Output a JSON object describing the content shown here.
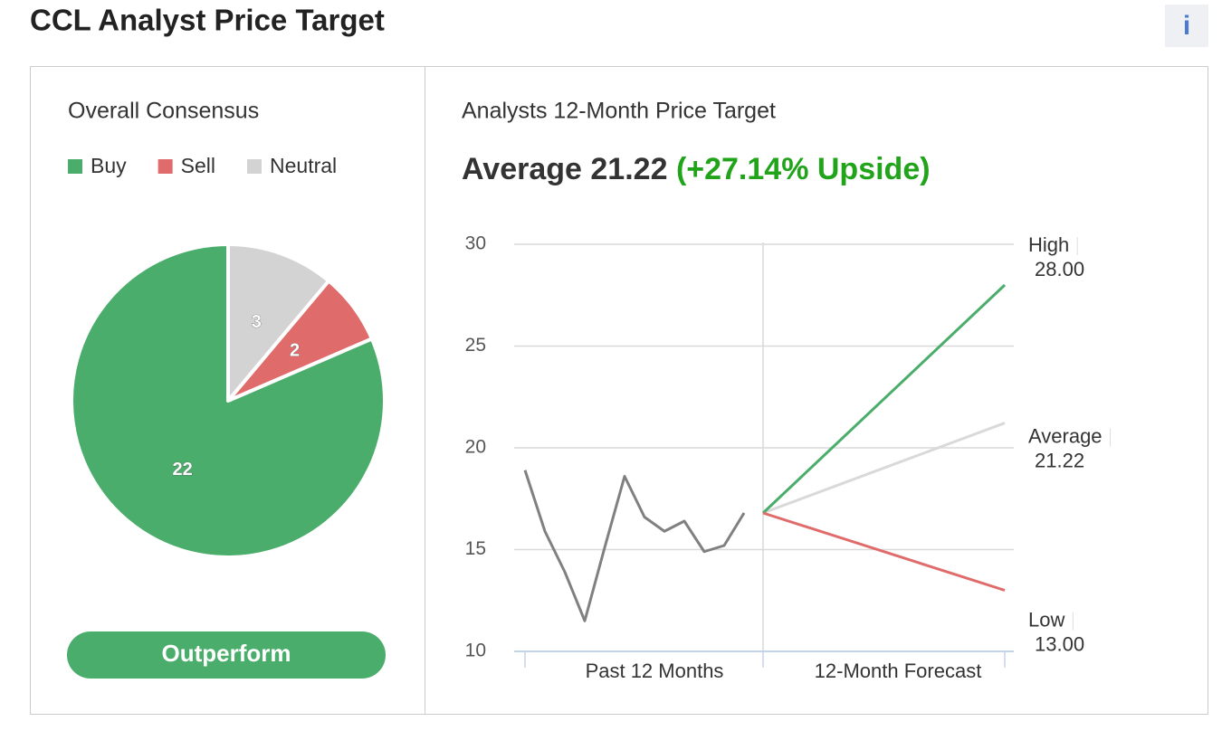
{
  "header": {
    "title": "CCL Analyst Price Target",
    "info": "i"
  },
  "chart_data": [
    {
      "type": "pie",
      "title": "Overall Consensus",
      "categories": [
        "Buy",
        "Sell",
        "Neutral"
      ],
      "values": [
        22,
        2,
        3
      ],
      "colors": [
        "#4aad6b",
        "#e06b6b",
        "#d3d3d3"
      ],
      "rating": "Outperform"
    },
    {
      "type": "line",
      "title": "Analysts 12-Month Price Target",
      "upside": "(+27.14% Upside)",
      "x_labels": [
        "Past 12 Months",
        "12-Month Forecast"
      ],
      "past": {
        "color": "#808080",
        "values": [
          18.9,
          15.9,
          13.9,
          11.5,
          15.1,
          18.6,
          16.6,
          15.9,
          16.4,
          14.9,
          15.2,
          16.8
        ]
      },
      "forecast": {
        "names": [
          "High",
          "Average",
          "Low"
        ],
        "values": [
          28,
          21.22,
          13
        ],
        "value_labels": [
          "28.00",
          "21.22",
          "13.00"
        ],
        "colors": [
          "#4aad6b",
          "#d9d9d9",
          "#e06b6b"
        ]
      },
      "ylim": [
        10,
        30
      ],
      "yticks": [
        10,
        15,
        20,
        25,
        30
      ],
      "grid": true
    }
  ]
}
